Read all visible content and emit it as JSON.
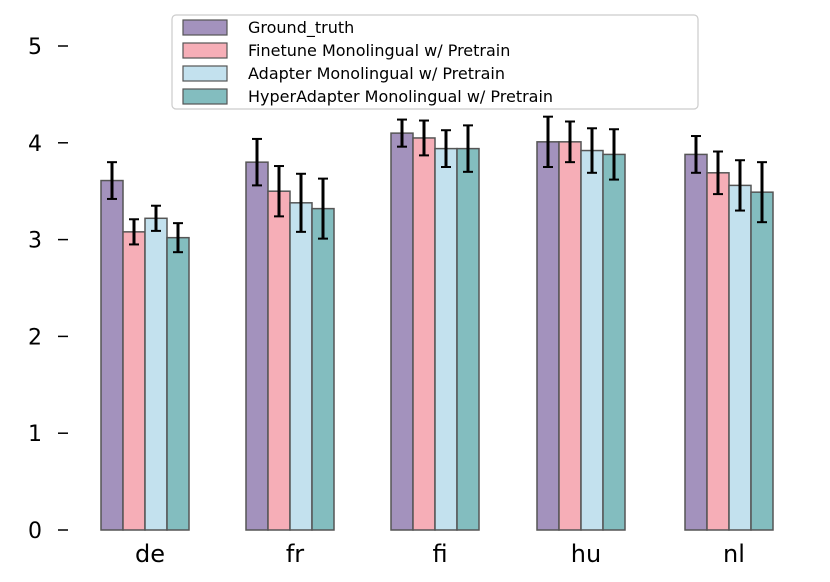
{
  "chart_data": {
    "type": "bar",
    "title": "",
    "xlabel": "",
    "ylabel": "",
    "ylim": [
      0,
      5.3
    ],
    "yticks": [
      "0",
      "1",
      "2",
      "3",
      "4",
      "5"
    ],
    "categories": [
      "de",
      "fr",
      "fi",
      "hu",
      "nl"
    ],
    "series": [
      {
        "name": "Ground_truth",
        "color": "#a392bd",
        "values": [
          3.61,
          3.8,
          4.1,
          4.01,
          3.88
        ],
        "errors": [
          0.19,
          0.24,
          0.14,
          0.26,
          0.19
        ]
      },
      {
        "name": "Finetune Monolingual w/ Pretrain",
        "color": "#f6aeb7",
        "values": [
          3.08,
          3.5,
          4.05,
          4.01,
          3.69
        ],
        "errors": [
          0.13,
          0.26,
          0.18,
          0.21,
          0.22
        ]
      },
      {
        "name": "Adapter Monolingual w/ Pretrain",
        "color": "#c3e1ee",
        "values": [
          3.22,
          3.38,
          3.94,
          3.92,
          3.56
        ],
        "errors": [
          0.13,
          0.3,
          0.19,
          0.23,
          0.26
        ]
      },
      {
        "name": "HyperAdapter Monolingual w/ Pretrain",
        "color": "#83bdbf",
        "values": [
          3.02,
          3.32,
          3.94,
          3.88,
          3.49
        ],
        "errors": [
          0.15,
          0.31,
          0.24,
          0.26,
          0.31
        ]
      }
    ],
    "legend_position": "top-center",
    "grid": false
  }
}
